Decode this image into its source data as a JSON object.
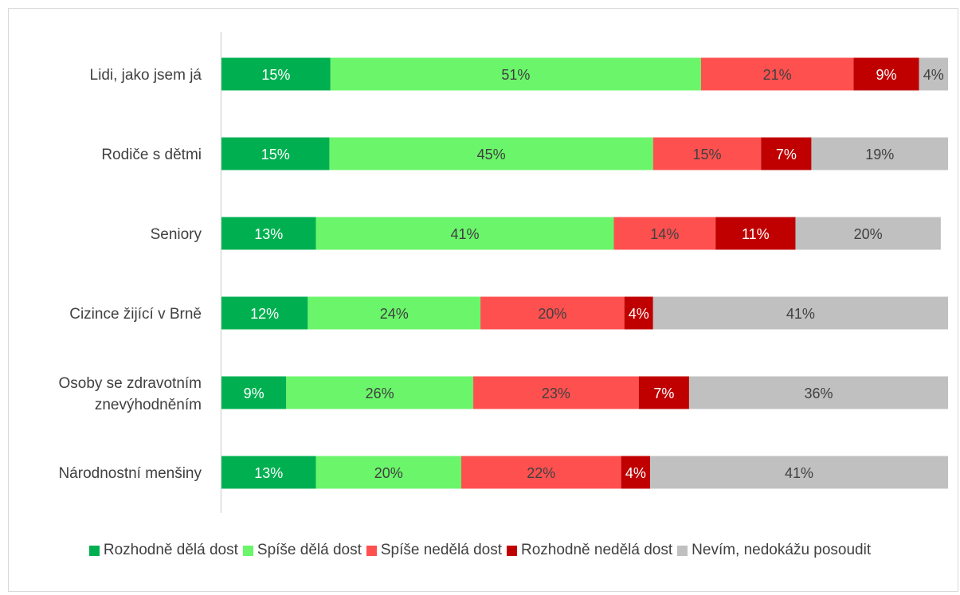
{
  "chart_data": {
    "type": "bar",
    "orientation": "horizontal",
    "stacked": true,
    "categories": [
      "Lidi, jako jsem já",
      "Rodiče s dětmi",
      "Seniory",
      "Cizince žijící v Brně",
      "Osoby se zdravotním znevýhodněním",
      "Národnostní menšiny"
    ],
    "series": [
      {
        "name": "Rozhodně dělá dost",
        "color": "#00b050",
        "label_color": "#ffffff",
        "values": [
          15,
          15,
          13,
          12,
          9,
          13
        ],
        "labels": [
          "15%",
          "15%",
          "13%",
          "12%",
          "9%",
          "13%"
        ]
      },
      {
        "name": "Spíše dělá dost",
        "color": "#6af56a",
        "label_color": "#404040",
        "values": [
          51,
          45,
          41,
          24,
          26,
          20
        ],
        "labels": [
          "51%",
          "45%",
          "41%",
          "24%",
          "26%",
          "20%"
        ]
      },
      {
        "name": "Spíše nedělá dost",
        "color": "#ff5050",
        "label_color": "#404040",
        "values": [
          21,
          15,
          14,
          20,
          23,
          22
        ],
        "labels": [
          "21%",
          "15%",
          "14%",
          "20%",
          "23%",
          "22%"
        ]
      },
      {
        "name": "Rozhodně nedělá dost",
        "color": "#c00000",
        "label_color": "#ffffff",
        "values": [
          9,
          7,
          11,
          4,
          7,
          4
        ],
        "labels": [
          "9%",
          "7%",
          "11%",
          "4%",
          "7%",
          "4%"
        ]
      },
      {
        "name": "Nevím, nedokážu posoudit",
        "color": "#c0c0c0",
        "label_color": "#404040",
        "values": [
          4,
          19,
          20,
          41,
          36,
          41
        ],
        "labels": [
          "4%",
          "19%",
          "20%",
          "41%",
          "36%",
          "41%"
        ]
      }
    ],
    "xlim": [
      0,
      100
    ],
    "grid": false,
    "legend": "bottom",
    "axis_color": "#d9d9d9"
  }
}
